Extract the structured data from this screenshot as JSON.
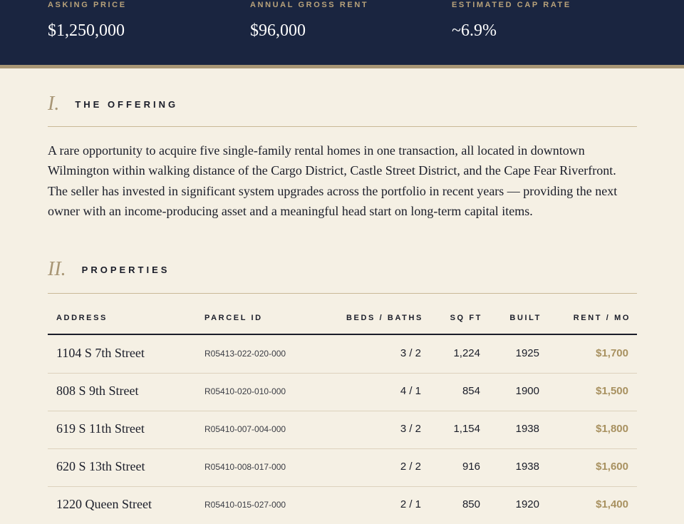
{
  "header": {
    "stats": [
      {
        "label": "ASKING PRICE",
        "value": "$1,250,000"
      },
      {
        "label": "ANNUAL GROSS RENT",
        "value": "$96,000"
      },
      {
        "label": "ESTIMATED CAP RATE",
        "value": "~6.9%"
      }
    ]
  },
  "sections": {
    "offering": {
      "numeral": "I.",
      "title": "THE OFFERING",
      "body": "A rare opportunity to acquire five single-family rental homes in one transaction, all located in downtown Wilmington within walking distance of the Cargo District, Castle Street District, and the Cape Fear Riverfront. The seller has invested in significant system upgrades across the portfolio in recent years — providing the next owner with an income-producing asset and a meaningful head start on long-term capital items."
    },
    "properties": {
      "numeral": "II.",
      "title": "PROPERTIES"
    }
  },
  "table": {
    "headers": {
      "address": "ADDRESS",
      "parcel": "PARCEL ID",
      "beds": "BEDS / BATHS",
      "sqft": "SQ FT",
      "built": "BUILT",
      "rent": "RENT / MO"
    },
    "rows": [
      {
        "address": "1104 S 7th Street",
        "parcel": "R05413-022-020-000",
        "beds": "3 / 2",
        "sqft": "1,224",
        "built": "1925",
        "rent": "$1,700"
      },
      {
        "address": "808 S 9th Street",
        "parcel": "R05410-020-010-000",
        "beds": "4 / 1",
        "sqft": "854",
        "built": "1900",
        "rent": "$1,500"
      },
      {
        "address": "619 S 11th Street",
        "parcel": "R05410-007-004-000",
        "beds": "3 / 2",
        "sqft": "1,154",
        "built": "1938",
        "rent": "$1,800"
      },
      {
        "address": "620 S 13th Street",
        "parcel": "R05410-008-017-000",
        "beds": "2 / 2",
        "sqft": "916",
        "built": "1938",
        "rent": "$1,600"
      },
      {
        "address": "1220 Queen Street",
        "parcel": "R05410-015-027-000",
        "beds": "2 / 1",
        "sqft": "850",
        "built": "1920",
        "rent": "$1,400"
      }
    ]
  }
}
